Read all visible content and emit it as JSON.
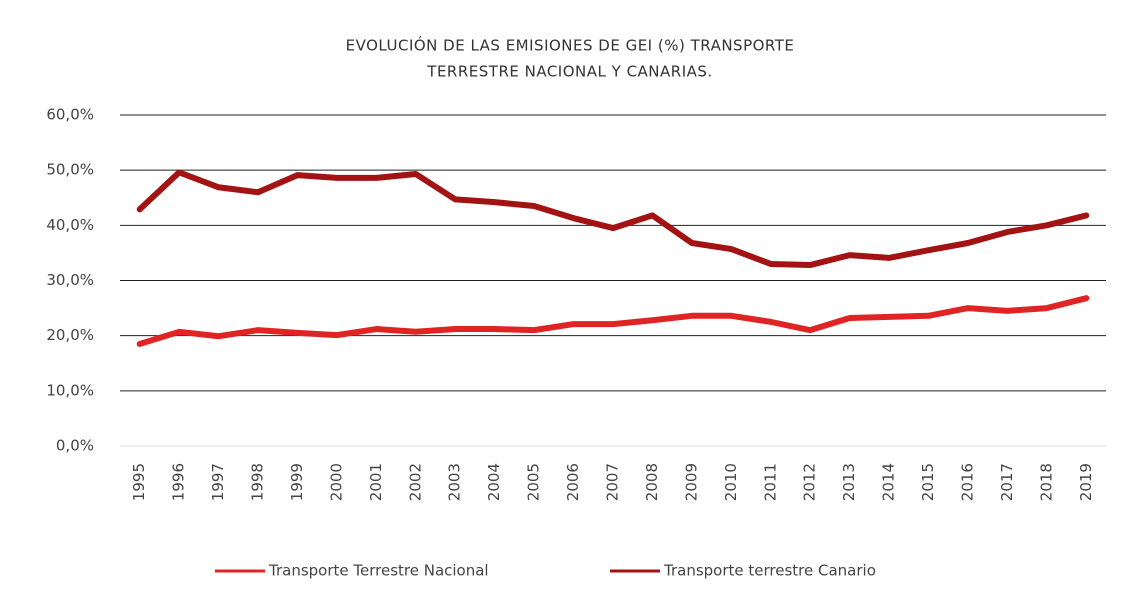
{
  "chart_data": {
    "type": "line",
    "title": [
      "EVOLUCIÓN DE LAS EMISIONES DE GEI (%) TRANSPORTE",
      "TERRESTRE NACIONAL Y CANARIAS."
    ],
    "categories": [
      "1995",
      "1996",
      "1997",
      "1998",
      "1999",
      "2000",
      "2001",
      "2002",
      "2003",
      "2004",
      "2005",
      "2006",
      "2007",
      "2008",
      "2009",
      "2010",
      "2011",
      "2012",
      "2013",
      "2014",
      "2015",
      "2016",
      "2017",
      "2018",
      "2019"
    ],
    "series": [
      {
        "name": "Transporte Terrestre Nacional",
        "color": "#e02424",
        "values": [
          18.5,
          20.7,
          19.9,
          21.0,
          20.5,
          20.1,
          21.2,
          20.7,
          21.2,
          21.2,
          21.0,
          22.1,
          22.1,
          22.8,
          23.6,
          23.6,
          22.5,
          21.0,
          23.2,
          23.4,
          23.6,
          25.0,
          24.5,
          25.0,
          26.8
        ]
      },
      {
        "name": "Transporte terrestre Canario",
        "color": "#a31313",
        "values": [
          42.9,
          49.6,
          46.9,
          46.0,
          49.1,
          48.6,
          48.6,
          49.3,
          44.7,
          44.2,
          43.5,
          41.3,
          39.5,
          41.8,
          36.8,
          35.7,
          33.0,
          32.8,
          34.6,
          34.1,
          35.5,
          36.8,
          38.8,
          40.0,
          41.8
        ]
      }
    ],
    "ylim": [
      0,
      60
    ],
    "yticks": [
      {
        "value": 0,
        "label": "0,0%"
      },
      {
        "value": 10,
        "label": "10,0%"
      },
      {
        "value": 20,
        "label": "20,0%"
      },
      {
        "value": 30,
        "label": "30,0%"
      },
      {
        "value": 40,
        "label": "40,0%"
      },
      {
        "value": 50,
        "label": "50,0%"
      },
      {
        "value": 60,
        "label": "60,0%"
      }
    ],
    "grid": true,
    "legend": "bottom"
  }
}
